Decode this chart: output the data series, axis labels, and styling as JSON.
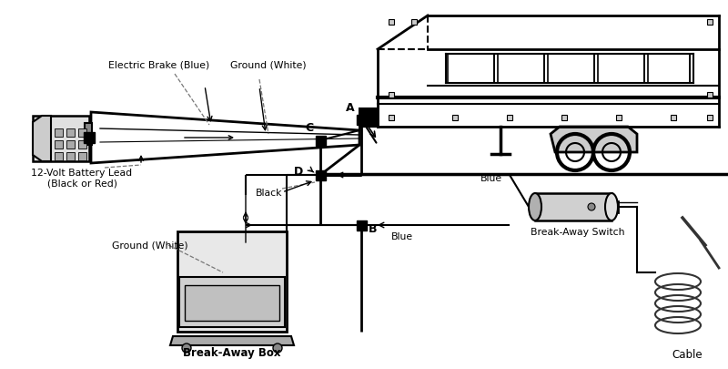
{
  "bg_color": "#ffffff",
  "line_color": "#000000",
  "labels": {
    "electric_brake": "Electric Brake (Blue)",
    "ground_white_top": "Ground (White)",
    "battery_lead": "12-Volt Battery Lead\n(Black or Red)",
    "black_wire": "Black",
    "blue_top": "Blue",
    "blue_bottom": "Blue",
    "ground_white_box": "Ground (White)",
    "breakaway_box": "Break-Away Box",
    "breakaway_switch": "Break-Away Switch",
    "cable": "Cable",
    "A": "A",
    "B": "B",
    "C": "C",
    "D": "D"
  },
  "figsize": [
    8.0,
    4.06
  ],
  "dpi": 100
}
